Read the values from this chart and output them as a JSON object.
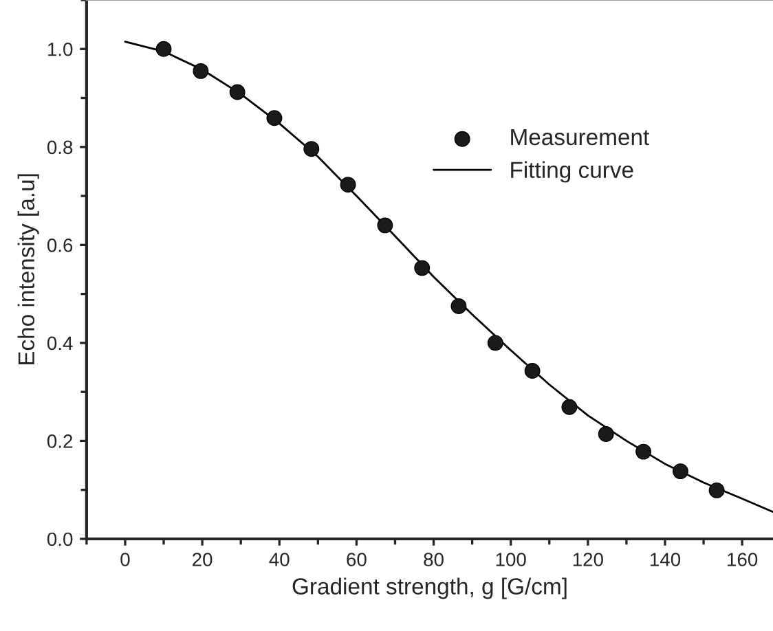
{
  "chart_data": {
    "type": "scatter",
    "xlabel": "Gradient strength, g [G/cm]",
    "ylabel": "Echo intensity [a.u]",
    "xlim": [
      -10,
      168
    ],
    "xticks": [
      0,
      20,
      40,
      60,
      80,
      100,
      120,
      140,
      160
    ],
    "ylim": [
      0,
      1.1
    ],
    "yticks": [
      {
        "value": 0,
        "label": "0.0"
      },
      {
        "value": 0.2,
        "label": "0.2"
      },
      {
        "value": 0.4,
        "label": "0.4"
      },
      {
        "value": 0.6,
        "label": "0.6"
      },
      {
        "value": 0.8,
        "label": "0.8"
      },
      {
        "value": 1.0,
        "label": "1.0"
      }
    ],
    "grid": false,
    "legend": "top right",
    "series": [
      {
        "name": "Measurement",
        "marker": "circle",
        "color": "#1a1a1a",
        "x": [
          10,
          19.6,
          29.1,
          38.7,
          48.3,
          57.8,
          67.4,
          77,
          86.5,
          96,
          105.6,
          115.2,
          124.7,
          134.4,
          144,
          153.4
        ],
        "values": [
          1.0,
          0.955,
          0.912,
          0.859,
          0.796,
          0.723,
          0.64,
          0.553,
          0.475,
          0.4,
          0.343,
          0.269,
          0.214,
          0.178,
          0.138,
          0.099
        ]
      },
      {
        "name": "Fitting curve",
        "type": "line",
        "marker": "none",
        "color": "#000000",
        "x": [
          0,
          10,
          20,
          30,
          40,
          50,
          60,
          70,
          80,
          90,
          100,
          110,
          120,
          130,
          140,
          150,
          160,
          168
        ],
        "values": [
          1.015,
          0.995,
          0.958,
          0.908,
          0.848,
          0.78,
          0.7,
          0.618,
          0.535,
          0.458,
          0.385,
          0.315,
          0.252,
          0.2,
          0.153,
          0.115,
          0.082,
          0.055
        ]
      }
    ]
  }
}
